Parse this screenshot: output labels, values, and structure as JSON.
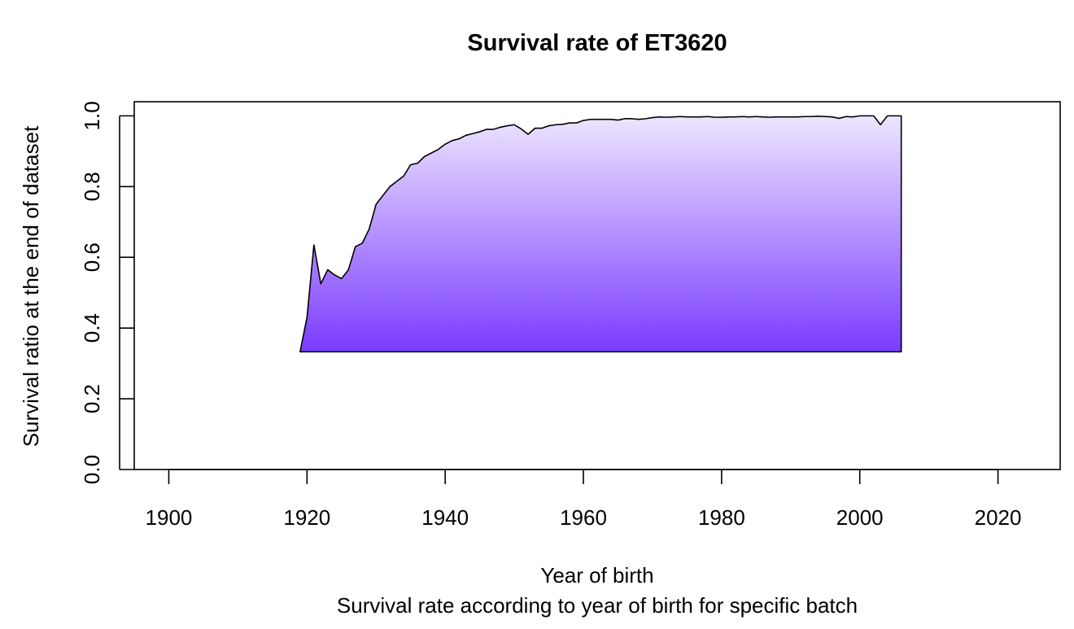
{
  "chart_data": {
    "type": "area",
    "title": "Survival rate of ET3620",
    "subtitle": "Survival rate according to year of birth for specific batch",
    "xlabel": "Year of birth",
    "ylabel": "Survival ratio at the end of dataset",
    "xlim": [
      1895,
      2029
    ],
    "ylim": [
      0,
      1.04
    ],
    "x_ticks": [
      1900,
      1920,
      1940,
      1960,
      1980,
      2000,
      2020
    ],
    "x_tick_labels": [
      "1900",
      "1920",
      "1940",
      "1960",
      "1980",
      "2000",
      "2020"
    ],
    "y_ticks": [
      0.0,
      0.2,
      0.4,
      0.6,
      0.8,
      1.0
    ],
    "y_tick_labels": [
      "0.0",
      "0.2",
      "0.4",
      "0.6",
      "0.8",
      "1.0"
    ],
    "baseline": 0.333,
    "grid": false,
    "fill_gradient": {
      "top": "#ede6ff",
      "bottom": "#7b3bff"
    },
    "line_color": "#000000",
    "x": [
      1919,
      1920,
      1921,
      1922,
      1923,
      1924,
      1925,
      1926,
      1927,
      1928,
      1929,
      1930,
      1931,
      1932,
      1933,
      1934,
      1935,
      1936,
      1937,
      1938,
      1939,
      1940,
      1941,
      1942,
      1943,
      1944,
      1945,
      1946,
      1947,
      1948,
      1949,
      1950,
      1951,
      1952,
      1953,
      1954,
      1955,
      1956,
      1957,
      1958,
      1959,
      1960,
      1961,
      1962,
      1963,
      1964,
      1965,
      1966,
      1967,
      1968,
      1969,
      1970,
      1971,
      1972,
      1973,
      1974,
      1975,
      1976,
      1977,
      1978,
      1979,
      1980,
      1981,
      1982,
      1983,
      1984,
      1985,
      1986,
      1987,
      1988,
      1989,
      1990,
      1991,
      1992,
      1993,
      1994,
      1995,
      1996,
      1997,
      1998,
      1999,
      2000,
      2001,
      2002,
      2003,
      2004,
      2005,
      2006
    ],
    "y": [
      0.333,
      0.43,
      0.635,
      0.525,
      0.565,
      0.55,
      0.54,
      0.565,
      0.63,
      0.64,
      0.68,
      0.75,
      0.775,
      0.8,
      0.815,
      0.83,
      0.862,
      0.866,
      0.885,
      0.895,
      0.905,
      0.92,
      0.93,
      0.935,
      0.945,
      0.95,
      0.955,
      0.962,
      0.962,
      0.968,
      0.972,
      0.975,
      0.963,
      0.948,
      0.965,
      0.965,
      0.972,
      0.975,
      0.976,
      0.98,
      0.98,
      0.987,
      0.99,
      0.99,
      0.99,
      0.99,
      0.988,
      0.992,
      0.992,
      0.99,
      0.992,
      0.995,
      0.997,
      0.996,
      0.997,
      0.998,
      0.997,
      0.997,
      0.997,
      0.998,
      0.996,
      0.996,
      0.997,
      0.997,
      0.998,
      0.997,
      0.998,
      0.997,
      0.996,
      0.997,
      0.997,
      0.997,
      0.997,
      0.998,
      0.998,
      0.999,
      0.998,
      0.997,
      0.993,
      0.998,
      0.997,
      1.0,
      1.0,
      1.0,
      0.975,
      1.0,
      1.0,
      1.0
    ]
  }
}
